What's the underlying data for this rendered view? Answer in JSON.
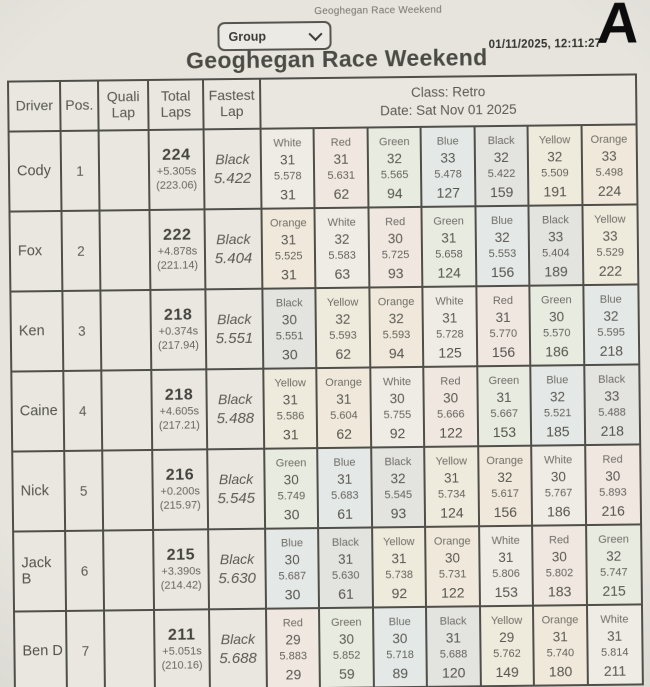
{
  "page": {
    "print_header": "Geoghegan Race Weekend",
    "group_dropdown": {
      "value": "Group"
    },
    "timestamp": "01/11/2025, 12:11:27",
    "corner_letter": "A",
    "title": "Geoghegan Race Weekend"
  },
  "icons": {
    "dropdown_chevron": "chevron-down"
  },
  "table": {
    "headers": {
      "driver": "Driver",
      "pos": "Pos.",
      "quali": "Quali Lap",
      "total": "Total Laps",
      "fastest": "Fastest Lap",
      "class_line": "Class: Retro",
      "date_line": "Date: Sat Nov 01 2025"
    },
    "rows": [
      {
        "driver": "Cody",
        "pos": "1",
        "quali": "",
        "total_laps": "224",
        "gap": "+5.305s",
        "avg": "(223.06)",
        "fastest_color": "Black",
        "fastest_time": "5.422",
        "stints": [
          {
            "color": "White",
            "laps": "31",
            "best": "5.578",
            "cum": "31"
          },
          {
            "color": "Red",
            "laps": "31",
            "best": "5.631",
            "cum": "62"
          },
          {
            "color": "Green",
            "laps": "32",
            "best": "5.565",
            "cum": "94"
          },
          {
            "color": "Blue",
            "laps": "33",
            "best": "5.478",
            "cum": "127"
          },
          {
            "color": "Black",
            "laps": "32",
            "best": "5.422",
            "cum": "159"
          },
          {
            "color": "Yellow",
            "laps": "32",
            "best": "5.509",
            "cum": "191"
          },
          {
            "color": "Orange",
            "laps": "33",
            "best": "5.498",
            "cum": "224"
          }
        ]
      },
      {
        "driver": "Fox",
        "pos": "2",
        "quali": "",
        "total_laps": "222",
        "gap": "+4.878s",
        "avg": "(221.14)",
        "fastest_color": "Black",
        "fastest_time": "5.404",
        "stints": [
          {
            "color": "Orange",
            "laps": "31",
            "best": "5.525",
            "cum": "31"
          },
          {
            "color": "White",
            "laps": "32",
            "best": "5.583",
            "cum": "63"
          },
          {
            "color": "Red",
            "laps": "30",
            "best": "5.725",
            "cum": "93"
          },
          {
            "color": "Green",
            "laps": "31",
            "best": "5.658",
            "cum": "124"
          },
          {
            "color": "Blue",
            "laps": "32",
            "best": "5.553",
            "cum": "156"
          },
          {
            "color": "Black",
            "laps": "33",
            "best": "5.404",
            "cum": "189"
          },
          {
            "color": "Yellow",
            "laps": "33",
            "best": "5.529",
            "cum": "222"
          }
        ]
      },
      {
        "driver": "Ken",
        "pos": "3",
        "quali": "",
        "total_laps": "218",
        "gap": "+0.374s",
        "avg": "(217.94)",
        "fastest_color": "Black",
        "fastest_time": "5.551",
        "stints": [
          {
            "color": "Black",
            "laps": "30",
            "best": "5.551",
            "cum": "30"
          },
          {
            "color": "Yellow",
            "laps": "32",
            "best": "5.593",
            "cum": "62"
          },
          {
            "color": "Orange",
            "laps": "32",
            "best": "5.593",
            "cum": "94"
          },
          {
            "color": "White",
            "laps": "31",
            "best": "5.728",
            "cum": "125"
          },
          {
            "color": "Red",
            "laps": "31",
            "best": "5.770",
            "cum": "156"
          },
          {
            "color": "Green",
            "laps": "30",
            "best": "5.570",
            "cum": "186"
          },
          {
            "color": "Blue",
            "laps": "32",
            "best": "5.595",
            "cum": "218"
          }
        ]
      },
      {
        "driver": "Caine",
        "pos": "4",
        "quali": "",
        "total_laps": "218",
        "gap": "+4.605s",
        "avg": "(217.21)",
        "fastest_color": "Black",
        "fastest_time": "5.488",
        "stints": [
          {
            "color": "Yellow",
            "laps": "31",
            "best": "5.586",
            "cum": "31"
          },
          {
            "color": "Orange",
            "laps": "31",
            "best": "5.604",
            "cum": "62"
          },
          {
            "color": "White",
            "laps": "30",
            "best": "5.755",
            "cum": "92"
          },
          {
            "color": "Red",
            "laps": "30",
            "best": "5.666",
            "cum": "122"
          },
          {
            "color": "Green",
            "laps": "31",
            "best": "5.667",
            "cum": "153"
          },
          {
            "color": "Blue",
            "laps": "32",
            "best": "5.521",
            "cum": "185"
          },
          {
            "color": "Black",
            "laps": "33",
            "best": "5.488",
            "cum": "218"
          }
        ]
      },
      {
        "driver": "Nick",
        "pos": "5",
        "quali": "",
        "total_laps": "216",
        "gap": "+0.200s",
        "avg": "(215.97)",
        "fastest_color": "Black",
        "fastest_time": "5.545",
        "stints": [
          {
            "color": "Green",
            "laps": "30",
            "best": "5.749",
            "cum": "30"
          },
          {
            "color": "Blue",
            "laps": "31",
            "best": "5.683",
            "cum": "61"
          },
          {
            "color": "Black",
            "laps": "32",
            "best": "5.545",
            "cum": "93"
          },
          {
            "color": "Yellow",
            "laps": "31",
            "best": "5.734",
            "cum": "124"
          },
          {
            "color": "Orange",
            "laps": "32",
            "best": "5.617",
            "cum": "156"
          },
          {
            "color": "White",
            "laps": "30",
            "best": "5.767",
            "cum": "186"
          },
          {
            "color": "Red",
            "laps": "30",
            "best": "5.893",
            "cum": "216"
          }
        ]
      },
      {
        "driver": "Jack B",
        "pos": "6",
        "quali": "",
        "total_laps": "215",
        "gap": "+3.390s",
        "avg": "(214.42)",
        "fastest_color": "Black",
        "fastest_time": "5.630",
        "stints": [
          {
            "color": "Blue",
            "laps": "30",
            "best": "5.687",
            "cum": "30"
          },
          {
            "color": "Black",
            "laps": "31",
            "best": "5.630",
            "cum": "61"
          },
          {
            "color": "Yellow",
            "laps": "31",
            "best": "5.738",
            "cum": "92"
          },
          {
            "color": "Orange",
            "laps": "30",
            "best": "5.731",
            "cum": "122"
          },
          {
            "color": "White",
            "laps": "31",
            "best": "5.806",
            "cum": "153"
          },
          {
            "color": "Red",
            "laps": "30",
            "best": "5.802",
            "cum": "183"
          },
          {
            "color": "Green",
            "laps": "32",
            "best": "5.747",
            "cum": "215"
          }
        ]
      },
      {
        "driver": "Ben D",
        "pos": "7",
        "quali": "",
        "total_laps": "211",
        "gap": "+5.051s",
        "avg": "(210.16)",
        "fastest_color": "Black",
        "fastest_time": "5.688",
        "stints": [
          {
            "color": "Red",
            "laps": "29",
            "best": "5.883",
            "cum": "29"
          },
          {
            "color": "Green",
            "laps": "30",
            "best": "5.852",
            "cum": "59"
          },
          {
            "color": "Blue",
            "laps": "30",
            "best": "5.718",
            "cum": "89"
          },
          {
            "color": "Black",
            "laps": "31",
            "best": "5.688",
            "cum": "120"
          },
          {
            "color": "Yellow",
            "laps": "29",
            "best": "5.762",
            "cum": "149"
          },
          {
            "color": "Orange",
            "laps": "31",
            "best": "5.740",
            "cum": "180"
          },
          {
            "color": "White",
            "laps": "31",
            "best": "5.814",
            "cum": "211"
          }
        ]
      }
    ]
  }
}
